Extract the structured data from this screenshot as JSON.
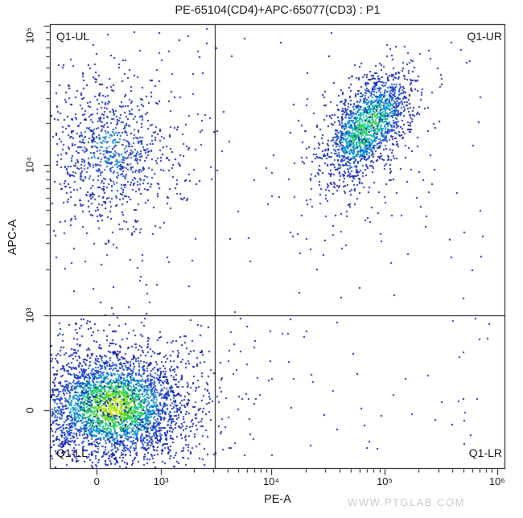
{
  "watermark": {
    "text": "WWW.PTGLAB.COM"
  },
  "chart_data": {
    "type": "scatter",
    "title": "PE-65104(CD4)+APC-65077(CD3) : P1",
    "xlabel": "PE-A",
    "ylabel": "APC-A",
    "x_axis": {
      "scale": "biexponential",
      "ticks": [
        {
          "label": "0",
          "f": 0.103
        },
        {
          "label": "10³",
          "f": 0.244
        },
        {
          "label": "10⁴",
          "f": 0.486
        },
        {
          "label": "10⁵",
          "f": 0.735
        },
        {
          "label": "10⁶",
          "f": 0.982
        }
      ]
    },
    "y_axis": {
      "scale": "biexponential",
      "ticks": [
        {
          "label": "10⁵",
          "f": 0.004
        },
        {
          "label": "10⁴",
          "f": 0.316
        },
        {
          "label": "10³",
          "f": 0.654
        },
        {
          "label": "0",
          "f": 0.868
        }
      ]
    },
    "quadrant_gate": {
      "name": "Q1",
      "x_divider_f": 0.362,
      "y_divider_f": 0.654,
      "labels": {
        "ul": "Q1-UL",
        "ur": "Q1-UR",
        "ll": "Q1-LL",
        "lr": "Q1-LR"
      }
    },
    "populations": [
      {
        "name": "Q1-LL double-negative core",
        "dist": "gauss",
        "center": [
          0.138,
          0.859
        ],
        "sd": [
          0.078,
          0.06
        ],
        "corr": 0,
        "count": 3000,
        "palette": "ll"
      },
      {
        "name": "Q1-LL halo",
        "dist": "gauss",
        "center": [
          0.14,
          0.855
        ],
        "sd": [
          0.145,
          0.105
        ],
        "corr": 0,
        "count": 700,
        "palette": "halo"
      },
      {
        "name": "Q1-UL CD3+CD4- core",
        "dist": "gauss",
        "center": [
          0.13,
          0.282
        ],
        "sd": [
          0.068,
          0.078
        ],
        "corr": 0,
        "count": 750,
        "palette": "ul"
      },
      {
        "name": "Q1-UL halo",
        "dist": "gauss",
        "center": [
          0.13,
          0.29
        ],
        "sd": [
          0.115,
          0.13
        ],
        "corr": 0,
        "count": 260,
        "palette": "halo"
      },
      {
        "name": "Q1-UR CD3+CD4+ core",
        "dist": "gauss",
        "center": [
          0.697,
          0.228
        ],
        "sd": [
          0.046,
          0.058
        ],
        "corr": -0.55,
        "count": 1500,
        "palette": "ur"
      },
      {
        "name": "Q1-UR halo and tail",
        "dist": "gauss",
        "center": [
          0.685,
          0.27
        ],
        "sd": [
          0.075,
          0.1
        ],
        "corr": -0.35,
        "count": 320,
        "palette": "halo"
      },
      {
        "name": "sparse noise upper half",
        "dist": "uniform",
        "rect": [
          0.03,
          0.97,
          0.02,
          0.62
        ],
        "count": 130,
        "palette": "halo"
      },
      {
        "name": "Q1-LR sparse events",
        "dist": "uniform",
        "rect": [
          0.38,
          0.97,
          0.66,
          0.97
        ],
        "count": 55,
        "palette": "halo"
      },
      {
        "name": "Q1-LL sparse surround",
        "dist": "uniform",
        "rect": [
          0.03,
          0.36,
          0.67,
          0.97
        ],
        "count": 120,
        "palette": "halo"
      }
    ],
    "palettes": {
      "ll": [
        {
          "r": 0.35,
          "colors": [
            "#f2e619",
            "#a8e42a",
            "#4fdd2e",
            "#d9e81f"
          ]
        },
        {
          "r": 0.62,
          "colors": [
            "#4fdd2e",
            "#8ce32a",
            "#22c94f"
          ]
        },
        {
          "r": 0.92,
          "colors": [
            "#22c94f",
            "#12bfae",
            "#3ad06e"
          ]
        },
        {
          "r": 1.28,
          "colors": [
            "#14a8cc",
            "#1a7fd4"
          ]
        },
        {
          "r": 1.75,
          "colors": [
            "#1e50d0",
            "#2b50d8"
          ]
        },
        {
          "r": 99,
          "colors": [
            "#1726b8"
          ]
        }
      ],
      "ur": [
        {
          "r": 0.5,
          "colors": [
            "#3fd957",
            "#17c9a0",
            "#8ce32a",
            "#2bd4c3"
          ]
        },
        {
          "r": 0.85,
          "colors": [
            "#17c9a0",
            "#14a8cc",
            "#27c94f"
          ]
        },
        {
          "r": 1.25,
          "colors": [
            "#1a7fd4",
            "#14a8cc"
          ]
        },
        {
          "r": 1.75,
          "colors": [
            "#1e50d0"
          ]
        },
        {
          "r": 99,
          "colors": [
            "#1726b8"
          ]
        }
      ],
      "ul": [
        {
          "r": 0.55,
          "colors": [
            "#2b6ada",
            "#1899d0",
            "#1e50d0",
            "#14a8cc"
          ]
        },
        {
          "r": 1.05,
          "colors": [
            "#2b50d8",
            "#1e3ecf"
          ]
        },
        {
          "r": 1.65,
          "colors": [
            "#1e32c4"
          ]
        },
        {
          "r": 99,
          "colors": [
            "#141fa8"
          ]
        }
      ],
      "halo": [
        {
          "r": 99,
          "colors": [
            "#1726b8",
            "#232dbd",
            "#0f1da0"
          ]
        }
      ]
    },
    "colors": {
      "axis": "#000000",
      "text": "#1a1a1a",
      "watermark": "#cbcbcb",
      "background": "#ffffff"
    }
  }
}
